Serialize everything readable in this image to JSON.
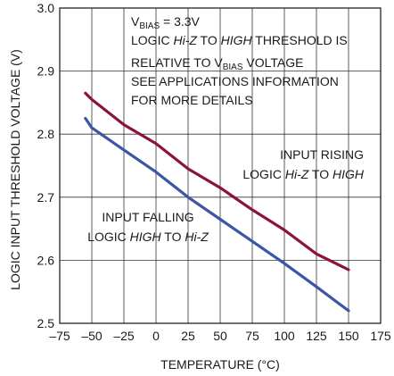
{
  "chart_data": {
    "type": "line",
    "xlabel": "TEMPERATURE (°C)",
    "ylabel": "LOGIC INPUT THRESHOLD VOLTAGE (V)",
    "xlim": [
      -75,
      175
    ],
    "ylim": [
      2.5,
      3.0
    ],
    "xticks": [
      -75,
      -50,
      -25,
      0,
      25,
      50,
      75,
      100,
      125,
      150,
      175
    ],
    "xtick_labels": [
      "–75",
      "–50",
      "–25",
      "0",
      "25",
      "50",
      "75",
      "100",
      "125",
      "150",
      "175"
    ],
    "yticks": [
      2.5,
      2.6,
      2.7,
      2.8,
      2.9,
      3.0
    ],
    "ytick_labels": [
      "2.5",
      "2.6",
      "2.7",
      "2.8",
      "2.9",
      "3.0"
    ],
    "grid": true,
    "series": [
      {
        "name": "INPUT RISING LOGIC Hi-Z TO HIGH",
        "color": "#8b1538",
        "x": [
          -55,
          -50,
          -25,
          0,
          25,
          50,
          75,
          100,
          125,
          150
        ],
        "y": [
          2.865,
          2.855,
          2.815,
          2.785,
          2.745,
          2.715,
          2.68,
          2.648,
          2.61,
          2.585
        ]
      },
      {
        "name": "INPUT FALLING LOGIC HIGH TO Hi-Z",
        "color": "#3a56a5",
        "x": [
          -55,
          -50,
          -25,
          0,
          25,
          50,
          75,
          100,
          125,
          150
        ],
        "y": [
          2.825,
          2.81,
          2.775,
          2.74,
          2.7,
          2.665,
          2.63,
          2.595,
          2.558,
          2.52
        ]
      }
    ],
    "annotations": {
      "vbias": {
        "prefix": "V",
        "sub": "BIAS",
        "suffix": " = 3.3V"
      },
      "line2": [
        {
          "t": "LOGIC ",
          "i": false
        },
        {
          "t": "Hi-Z",
          "i": true
        },
        {
          "t": " TO ",
          "i": false
        },
        {
          "t": "HIGH",
          "i": true
        },
        {
          "t": " THRESHOLD IS",
          "i": false
        }
      ],
      "line3": {
        "prefix": "RELATIVE TO V",
        "sub": "BIAS",
        "suffix": " VOLTAGE"
      },
      "line4": "SEE APPLICATIONS INFORMATION",
      "line5": "FOR MORE DETAILS",
      "rising_label_1": "INPUT RISING",
      "rising_label_2": [
        {
          "t": "LOGIC ",
          "i": false
        },
        {
          "t": "Hi-Z",
          "i": true
        },
        {
          "t": " TO ",
          "i": false
        },
        {
          "t": "HIGH",
          "i": true
        }
      ],
      "falling_label_1": "INPUT FALLING",
      "falling_label_2": [
        {
          "t": "LOGIC ",
          "i": false
        },
        {
          "t": "HIGH",
          "i": true
        },
        {
          "t": " TO ",
          "i": false
        },
        {
          "t": "Hi-Z",
          "i": true
        }
      ]
    }
  }
}
